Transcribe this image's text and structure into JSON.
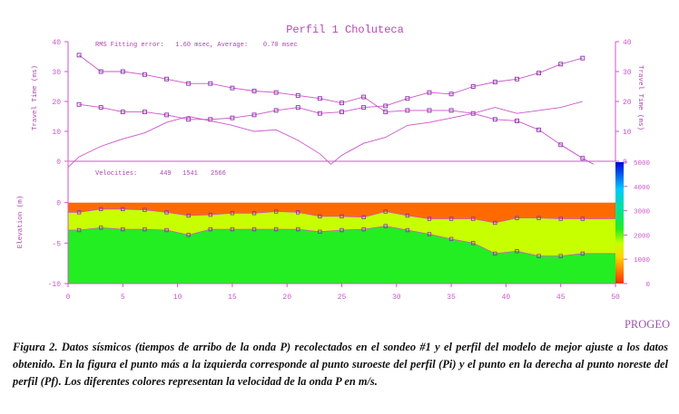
{
  "chart_data": [
    {
      "type": "line",
      "title": "Perfil 1 Choluteca",
      "ylabel": "Travel Time (ms)",
      "ylabel_right": "Travel Time (ms)",
      "annotation": "RMS Fitting error:   1.60 msec, Average:    0.70 msec",
      "xlim": [
        0,
        50
      ],
      "ylim": [
        0,
        40
      ],
      "y_ticks": [
        0,
        10,
        20,
        30,
        40
      ],
      "series_color": "#cc55cc",
      "series": [
        {
          "x": [
            1,
            3,
            5,
            7,
            9,
            11,
            13,
            15,
            17,
            19,
            21,
            23,
            25,
            27,
            29,
            31,
            33,
            35,
            37,
            39,
            41,
            43,
            45,
            47
          ],
          "values": [
            35.5,
            30,
            30,
            29,
            27.5,
            26,
            26,
            24.5,
            23.5,
            23,
            22,
            21,
            19.5,
            21.5,
            16.5,
            17,
            17,
            17,
            16,
            14,
            13.5,
            10.5,
            5.5,
            1
          ]
        },
        {
          "x": [
            1,
            3,
            5,
            7,
            9,
            11,
            13,
            15,
            17,
            19,
            21,
            23,
            25,
            27,
            29,
            31,
            33,
            35,
            37,
            39,
            41,
            43,
            45,
            47
          ],
          "values": [
            19,
            18,
            16.5,
            16.5,
            15.5,
            14,
            14,
            14.5,
            15.5,
            17,
            18,
            16,
            16.5,
            18,
            18.5,
            21,
            23,
            22.5,
            25,
            26.5,
            27.5,
            29.5,
            32.5,
            34.5
          ]
        },
        {
          "x": [
            0,
            1,
            3,
            5,
            7,
            9,
            11,
            13,
            15,
            17,
            19,
            21,
            23,
            24,
            25,
            27,
            29,
            31,
            33,
            35,
            37,
            39,
            41,
            43,
            45,
            47
          ],
          "values": [
            -2,
            1.5,
            5,
            7.5,
            9.5,
            13,
            15,
            13.5,
            12,
            10,
            10.5,
            7,
            2.5,
            -1,
            2,
            6,
            8,
            12,
            13,
            14.5,
            16,
            18,
            16,
            17,
            18,
            20
          ]
        },
        {
          "x": [
            45,
            47,
            48
          ],
          "values": [
            5.5,
            1,
            -1
          ]
        }
      ]
    },
    {
      "type": "heatmap",
      "ylabel": "Elevation (m)",
      "annotation_label": "Velocities:",
      "velocities": [
        "449",
        "1541",
        "2566"
      ],
      "xlim": [
        0,
        50
      ],
      "ylim": [
        -10,
        5
      ],
      "x_ticks": [
        0,
        5,
        10,
        15,
        20,
        25,
        30,
        35,
        40,
        45,
        50
      ],
      "y_ticks": [
        -10,
        -5,
        0
      ],
      "layer_colors": [
        "#ff6a00",
        "#c8ff00",
        "#22ee22"
      ],
      "interface_1": {
        "x": [
          0,
          1,
          3,
          5,
          7,
          9,
          11,
          13,
          15,
          17,
          19,
          21,
          23,
          25,
          27,
          29,
          31,
          33,
          35,
          37,
          39,
          41,
          43,
          45,
          47,
          50
        ],
        "values": [
          -1.2,
          -1.2,
          -0.8,
          -0.8,
          -0.9,
          -1.2,
          -1.6,
          -1.5,
          -1.3,
          -1.3,
          -1.1,
          -1.2,
          -1.7,
          -1.7,
          -1.8,
          -1.1,
          -1.6,
          -2,
          -2,
          -2,
          -2.5,
          -1.9,
          -1.9,
          -2,
          -2,
          -2
        ]
      },
      "interface_2": {
        "x": [
          0,
          1,
          3,
          5,
          7,
          9,
          11,
          13,
          15,
          17,
          19,
          21,
          23,
          25,
          27,
          29,
          31,
          33,
          35,
          37,
          39,
          41,
          43,
          45,
          47,
          50
        ],
        "values": [
          -3.4,
          -3.4,
          -3.1,
          -3.3,
          -3.3,
          -3.4,
          -4,
          -3.3,
          -3.3,
          -3.3,
          -3.3,
          -3.3,
          -3.6,
          -3.4,
          -3.3,
          -2.9,
          -3.4,
          -3.9,
          -4.5,
          -5,
          -6.3,
          -6,
          -6.6,
          -6.6,
          -6.3,
          -6.3
        ]
      },
      "colorbar_ticks": [
        0,
        1000,
        2000,
        3000,
        4000,
        5000
      ]
    }
  ],
  "watermark": "PROGEO",
  "caption": {
    "lead": "Figura 2.",
    "text": " Datos sísmicos (tiempos de arribo de la onda P) recolectados en el sondeo #1 y el perfil del modelo de mejor ajuste a los datos obtenido.  En la figura el punto más a la izquierda corresponde al punto suroeste del perfil (Pi) y el punto en la derecha al punto noreste del perfil (Pf). Los diferentes colores representan la velocidad de la onda P en m/s."
  }
}
